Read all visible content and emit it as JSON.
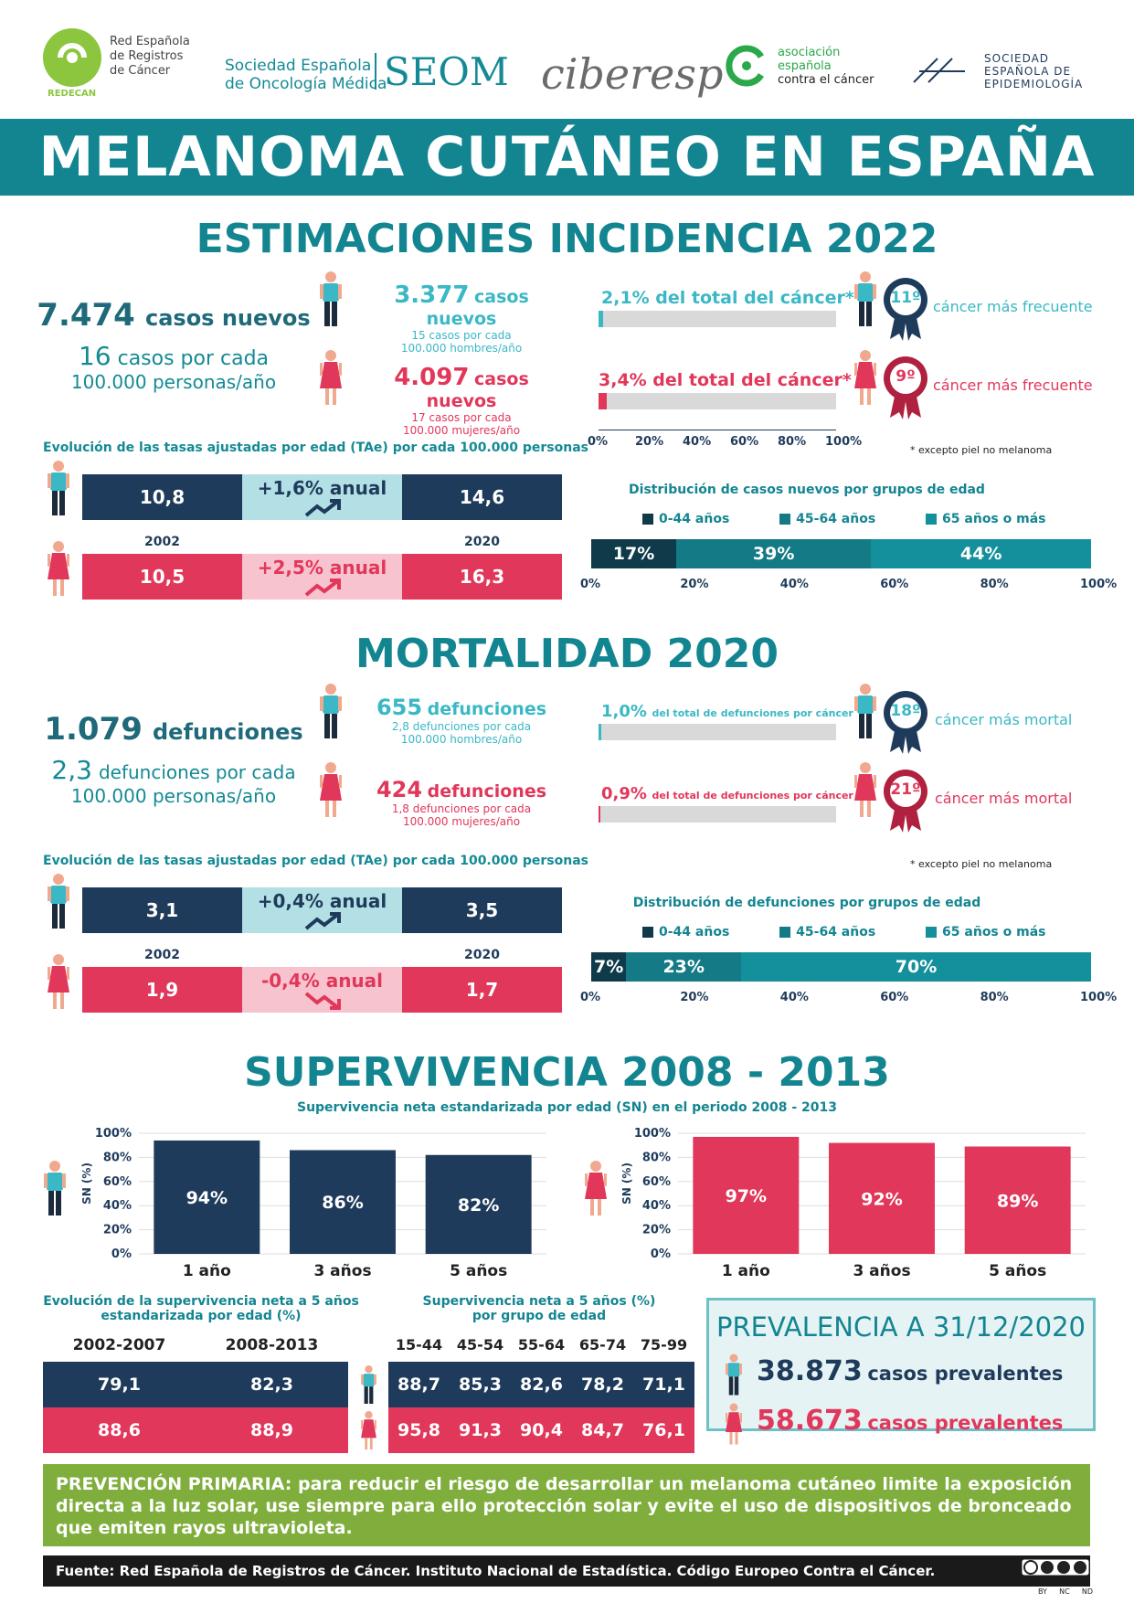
{
  "logos": {
    "redecan_text": [
      "Red Española",
      "de Registros",
      "de Cáncer"
    ],
    "redecan_sub": "REDECAN",
    "seom_text1": "Sociedad Española",
    "seom_text2": "de Oncología Médica",
    "seom_abbr": "SEOM",
    "ciberesp": "ciberesp",
    "aecc_text": [
      "asociación",
      "española",
      "contra el cáncer"
    ],
    "see_text": [
      "SOCIEDAD",
      "ESPAÑOLA DE",
      "EPIDEMIOLOGÍA"
    ]
  },
  "banner": "MELANOMA CUTÁNEO EN ESPAÑA",
  "incidence": {
    "title": "ESTIMACIONES INCIDENCIA 2022",
    "total_number": "7.474",
    "total_label": "casos nuevos",
    "total_rate_num": "16",
    "total_rate_label": "casos por cada",
    "total_rate_label2": "100.000 personas/año",
    "men_number": "3.377",
    "men_label": "casos nuevos",
    "men_rate": "15 casos por cada",
    "men_rate2": "100.000 hombres/año",
    "women_number": "4.097",
    "women_label": "casos nuevos",
    "women_rate": "17 casos por cada",
    "women_rate2": "100.000 mujeres/año",
    "men_pct_label": "2,1% del total del cáncer*",
    "men_pct": 2.1,
    "women_pct_label": "3,4% del total del cáncer*",
    "women_pct": 3.4,
    "pct_axis": [
      "0%",
      "20%",
      "40%",
      "60%",
      "80%",
      "100%"
    ],
    "men_rank": "11º",
    "men_rank_label": "cáncer más frecuente",
    "women_rank": "9º",
    "women_rank_label": "cáncer más frecuente",
    "footnote": "* excepto piel no melanoma",
    "trend_caption": "Evolución de las tasas ajustadas por edad (TAe) por cada 100.000 personas",
    "men_2002": "10,8",
    "men_trend": "+1,6% anual",
    "men_2020": "14,6",
    "year_a": "2002",
    "year_b": "2020",
    "women_2002": "10,5",
    "women_trend": "+2,5% anual",
    "women_2020": "16,3",
    "dist_caption": "Distribución de casos nuevos por grupos de edad",
    "legend": [
      "0-44 años",
      "45-64 años",
      "65 años o más"
    ],
    "dist_values": [
      17,
      39,
      44
    ],
    "dist_labels": [
      "17%",
      "39%",
      "44%"
    ],
    "dist_axis": [
      "0%",
      "20%",
      "40%",
      "60%",
      "80%",
      "100%"
    ]
  },
  "mortality": {
    "title": "MORTALIDAD 2020",
    "total_number": "1.079",
    "total_label": "defunciones",
    "total_rate_num": "2,3",
    "total_rate_label": "defunciones por cada",
    "total_rate_label2": "100.000 personas/año",
    "men_number": "655",
    "men_label": "defunciones",
    "men_rate": "2,8 defunciones por cada",
    "men_rate2": "100.000 hombres/año",
    "women_number": "424",
    "women_label": "defunciones",
    "women_rate": "1,8 defunciones por cada",
    "women_rate2": "100.000 mujeres/año",
    "men_pct_big": "1,0%",
    "men_pct_small": "del total de defunciones por cáncer",
    "men_pct": 1.0,
    "women_pct_big": "0,9%",
    "women_pct_small": "del total de defunciones por cáncer",
    "women_pct": 0.9,
    "men_rank": "18º",
    "men_rank_label": "cáncer más mortal",
    "women_rank": "21º",
    "women_rank_label": "cáncer más mortal",
    "footnote": "* excepto piel no melanoma",
    "trend_caption": "Evolución de las tasas ajustadas por edad (TAe) por cada 100.000 personas",
    "men_2002": "3,1",
    "men_trend": "+0,4% anual",
    "men_2020": "3,5",
    "year_a": "2002",
    "year_b": "2020",
    "women_2002": "1,9",
    "women_trend": "-0,4% anual",
    "women_2020": "1,7",
    "dist_caption": "Distribución de defunciones por grupos de edad",
    "legend": [
      "0-44 años",
      "45-64 años",
      "65 años o más"
    ],
    "dist_values": [
      7,
      23,
      70
    ],
    "dist_labels": [
      "7%",
      "23%",
      "70%"
    ],
    "dist_axis": [
      "0%",
      "20%",
      "40%",
      "60%",
      "80%",
      "100%"
    ]
  },
  "survival": {
    "title": "SUPERVIVENCIA 2008 - 2013",
    "subtitle": "Supervivencia neta estandarizada por edad (SN) en el periodo 2008 - 2013",
    "ylabel": "SN (%)",
    "y_ticks": [
      "100%",
      "80%",
      "60%",
      "40%",
      "20%",
      "0%"
    ],
    "evo_caption1": "Evolución de la supervivencia neta a 5 años",
    "evo_caption2": "estandarizada por edad (%)",
    "evo_headers": [
      "2002-2007",
      "2008-2013"
    ],
    "evo_men": [
      "79,1",
      "82,3"
    ],
    "evo_women": [
      "88,6",
      "88,9"
    ],
    "age_caption1": "Supervivencia neta a 5 años (%)",
    "age_caption2": "por grupo de edad",
    "age_headers": [
      "15-44",
      "45-54",
      "55-64",
      "65-74",
      "75-99"
    ],
    "age_men": [
      "88,7",
      "85,3",
      "82,6",
      "78,2",
      "71,1"
    ],
    "age_women": [
      "95,8",
      "91,3",
      "90,4",
      "84,7",
      "76,1"
    ]
  },
  "prevalence": {
    "title": "PREVALENCIA A 31/12/2020",
    "men_number": "38.873",
    "men_label": "casos prevalentes",
    "women_number": "58.673",
    "women_label": "casos prevalentes"
  },
  "prevention": "PREVENCIÓN PRIMARIA: para reducir el riesgo de desarrollar un melanoma cutáneo limite la exposición directa a la luz solar, use siempre para ello protección solar y evite el uso de dispositivos de bronceado que emiten rayos ultravioleta.",
  "footer": "Fuente: Red Española de Registros de Cáncer. Instituto Nacional de Estadística. Código Europeo Contra el Cáncer.",
  "license": [
    "BY",
    "NC",
    "ND"
  ],
  "colors": {
    "teal": "#138591",
    "navy": "#1f3b5b",
    "pink": "#e1375a",
    "light_teal": "#b3e0e5",
    "light_pink": "#f7c3ce",
    "green": "#7fae3c",
    "dist_dark": "#0f3a4a",
    "dist_mid": "#147a85",
    "dist_light": "#148f9c"
  },
  "chart_data": [
    {
      "type": "bar",
      "title": "Supervivencia neta estandarizada por edad (SN) en el periodo 2008 - 2013",
      "series": [
        {
          "name": "Hombres",
          "values": [
            94,
            86,
            82
          ]
        }
      ],
      "categories": [
        "1 año",
        "3 años",
        "5 años"
      ],
      "value_labels": [
        "94%",
        "86%",
        "82%"
      ],
      "ylabel": "SN (%)",
      "ylim": [
        0,
        100
      ],
      "grid": true
    },
    {
      "type": "bar",
      "title": "",
      "series": [
        {
          "name": "Mujeres",
          "values": [
            97,
            92,
            89
          ]
        }
      ],
      "categories": [
        "1 año",
        "3 años",
        "5 años"
      ],
      "value_labels": [
        "97%",
        "92%",
        "89%"
      ],
      "ylabel": "SN (%)",
      "ylim": [
        0,
        100
      ],
      "grid": true
    },
    {
      "type": "bar",
      "title": "Distribución de casos nuevos por grupos de edad",
      "categories": [
        "0-44 años",
        "45-64 años",
        "65 años o más"
      ],
      "values": [
        17,
        39,
        44
      ],
      "stacked": true
    },
    {
      "type": "bar",
      "title": "Distribución de defunciones por grupos de edad",
      "categories": [
        "0-44 años",
        "45-64 años",
        "65 años o más"
      ],
      "values": [
        7,
        23,
        70
      ],
      "stacked": true
    }
  ]
}
